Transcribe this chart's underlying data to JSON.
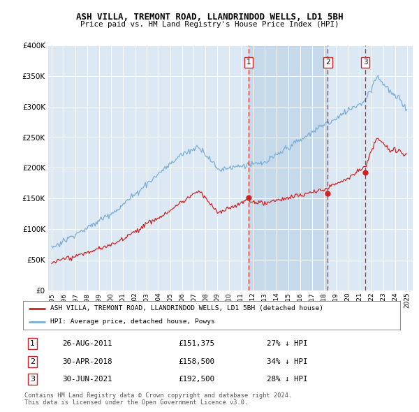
{
  "title": "ASH VILLA, TREMONT ROAD, LLANDRINDOD WELLS, LD1 5BH",
  "subtitle": "Price paid vs. HM Land Registry's House Price Index (HPI)",
  "legend_line1": "ASH VILLA, TREMONT ROAD, LLANDRINDOD WELLS, LD1 5BH (detached house)",
  "legend_line2": "HPI: Average price, detached house, Powys",
  "footer1": "Contains HM Land Registry data © Crown copyright and database right 2024.",
  "footer2": "This data is licensed under the Open Government Licence v3.0.",
  "transactions": [
    {
      "num": 1,
      "date": "26-AUG-2011",
      "price": "£151,375",
      "pct": "27% ↓ HPI",
      "x_year": 2011.65
    },
    {
      "num": 2,
      "date": "30-APR-2018",
      "price": "£158,500",
      "pct": "34% ↓ HPI",
      "x_year": 2018.33
    },
    {
      "num": 3,
      "date": "30-JUN-2021",
      "price": "£192,500",
      "pct": "28% ↓ HPI",
      "x_year": 2021.5
    }
  ],
  "hpi_color": "#7aadd4",
  "price_color": "#cc2222",
  "vline_color": "#cc2222",
  "dot_color": "#cc2222",
  "plot_bg_color": "#dce8f3",
  "shade_color": "#c5d9eb",
  "ylim": [
    0,
    400000
  ],
  "ytick_max": 400000,
  "xlim_start": 1994.7,
  "xlim_end": 2025.5
}
